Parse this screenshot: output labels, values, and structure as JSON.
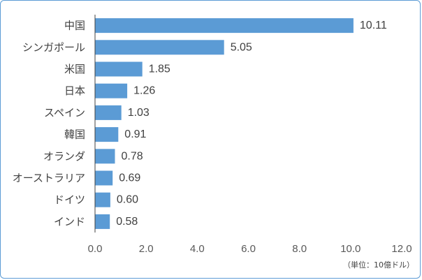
{
  "chart_data": {
    "type": "bar",
    "orientation": "horizontal",
    "categories": [
      "中国",
      "シンガポール",
      "米国",
      "日本",
      "スペイン",
      "韓国",
      "オランダ",
      "オーストラリア",
      "ドイツ",
      "インド"
    ],
    "values": [
      10.11,
      5.05,
      1.85,
      1.26,
      1.03,
      0.91,
      0.78,
      0.69,
      0.6,
      0.58
    ],
    "value_labels": [
      "10.11",
      "5.05",
      "1.85",
      "1.26",
      "1.03",
      "0.91",
      "0.78",
      "0.69",
      "0.60",
      "0.58"
    ],
    "xlim": [
      0,
      12
    ],
    "xticks": [
      "0.0",
      "2.0",
      "4.0",
      "6.0",
      "8.0",
      "10.0",
      "12.0"
    ],
    "unit_note": "（単位：10億ドル）",
    "grid": false,
    "bar_color": "#5b9bd5",
    "axis_color": "#404040",
    "frame_color": "#5b9bd5"
  }
}
